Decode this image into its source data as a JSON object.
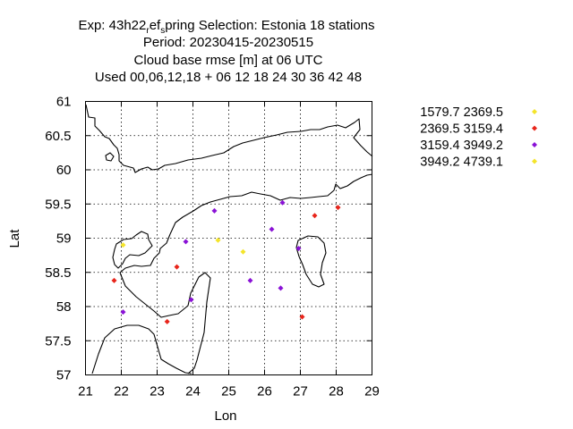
{
  "chart_data": {
    "type": "scatter",
    "title_lines": [
      "Exp: 43h22_ref_spring   Selection: Estonia     18 stations",
      "Period: 20230415-20230515",
      "Cloud base rmse [m] at  06 UTC",
      "Used  00,06,12,18  + 06 12 18 24 30 36 42 48"
    ],
    "title_parts": {
      "exp_prefix": "Exp: 43h22",
      "exp_sub1": "r",
      "exp_mid1": "ef",
      "exp_sub2": "s",
      "exp_suffix": "pring   Selection: Estonia     18 stations"
    },
    "xlabel": "Lon",
    "ylabel": "Lat",
    "xlim": [
      21,
      29
    ],
    "ylim": [
      57,
      61
    ],
    "xticks": [
      21,
      22,
      23,
      24,
      25,
      26,
      27,
      28,
      29
    ],
    "yticks": [
      57,
      57.5,
      58,
      58.5,
      59,
      59.5,
      60,
      60.5,
      61
    ],
    "grid": true,
    "legend_position": "right",
    "series": [
      {
        "name": "1579.7 2369.5",
        "color": "#f4e42a",
        "points": [
          [
            22.05,
            58.9
          ],
          [
            24.7,
            58.97
          ],
          [
            25.4,
            58.8
          ]
        ]
      },
      {
        "name": "2369.5 3159.4",
        "color": "#e8251b",
        "points": [
          [
            21.8,
            58.38
          ],
          [
            23.55,
            58.58
          ],
          [
            23.28,
            57.78
          ],
          [
            27.4,
            59.33
          ],
          [
            28.05,
            59.45
          ],
          [
            27.05,
            57.85
          ]
        ]
      },
      {
        "name": "3159.4 3949.2",
        "color": "#8a12d6",
        "points": [
          [
            22.05,
            57.92
          ],
          [
            23.8,
            58.95
          ],
          [
            23.95,
            58.1
          ],
          [
            24.6,
            59.4
          ],
          [
            25.6,
            58.38
          ],
          [
            26.2,
            59.13
          ],
          [
            26.5,
            59.52
          ],
          [
            26.45,
            58.27
          ],
          [
            26.95,
            58.85
          ]
        ]
      },
      {
        "name": "3949.2 4739.1",
        "color": "#f4e42a",
        "points": []
      }
    ]
  }
}
